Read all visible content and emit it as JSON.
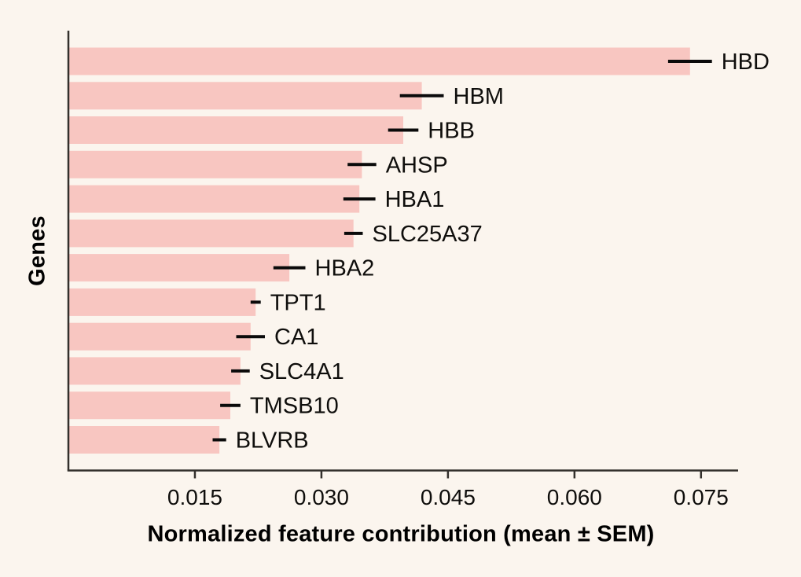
{
  "chart_data": {
    "type": "bar",
    "orientation": "horizontal",
    "title": "",
    "xlabel": "Normalized feature contribution (mean ± SEM)",
    "ylabel": "Genes",
    "categories": [
      "HBD",
      "HBM",
      "HBB",
      "AHSP",
      "HBA1",
      "SLC25A37",
      "HBA2",
      "TPT1",
      "CA1",
      "SLC4A1",
      "TMSB10",
      "BLVRB"
    ],
    "series": [
      {
        "name": "mean",
        "values": [
          0.0737,
          0.0419,
          0.0397,
          0.0348,
          0.0345,
          0.0338,
          0.0262,
          0.0222,
          0.0216,
          0.0204,
          0.0192,
          0.0179
        ]
      },
      {
        "name": "sem",
        "values": [
          0.0026,
          0.0026,
          0.0018,
          0.0017,
          0.0019,
          0.0011,
          0.0019,
          0.0006,
          0.0017,
          0.0011,
          0.0012,
          0.0008
        ]
      }
    ],
    "xlim": [
      0,
      0.0794
    ],
    "xticks": [
      0.015,
      0.03,
      0.045,
      0.06,
      0.075
    ],
    "xtick_labels": [
      "0.015",
      "0.030",
      "0.045",
      "0.060",
      "0.075"
    ],
    "grid": false,
    "legend_position": "none",
    "error_bars": "horizontal lines without caps, centered on bar end",
    "bar_labels_position": "right of error bar",
    "colors": {
      "background": "#fbf5ee",
      "bar": "#f8c6c1",
      "axis": "#33302c",
      "text": "#0f0e0c",
      "error_bar": "#0a0a0a"
    }
  }
}
